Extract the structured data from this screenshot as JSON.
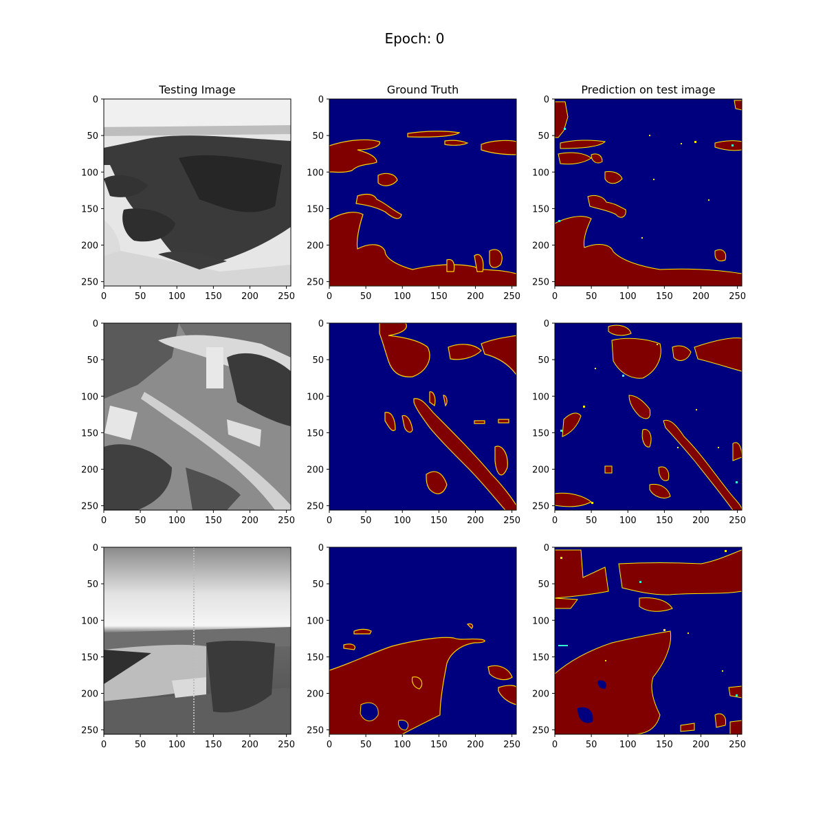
{
  "suptitle": "Epoch: 0",
  "column_titles": [
    "Testing Image",
    "Ground Truth",
    "Prediction on test image"
  ],
  "chart_data": {
    "type": "heatmap",
    "layout": "3x3 image grid",
    "colormaps": {
      "testing_image": "gray",
      "ground_truth": "jet",
      "prediction": "jet"
    },
    "image_size": [
      256,
      256
    ],
    "xlim": [
      0,
      256
    ],
    "ylim": [
      256,
      0
    ],
    "xticks": [
      0,
      50,
      100,
      150,
      200,
      250
    ],
    "yticks": [
      0,
      50,
      100,
      150,
      200,
      250
    ],
    "colors": {
      "water": "#800000",
      "background": "#00007f",
      "edge_cyan": "#33ffd6",
      "edge_yellow": "#ffee00"
    }
  }
}
